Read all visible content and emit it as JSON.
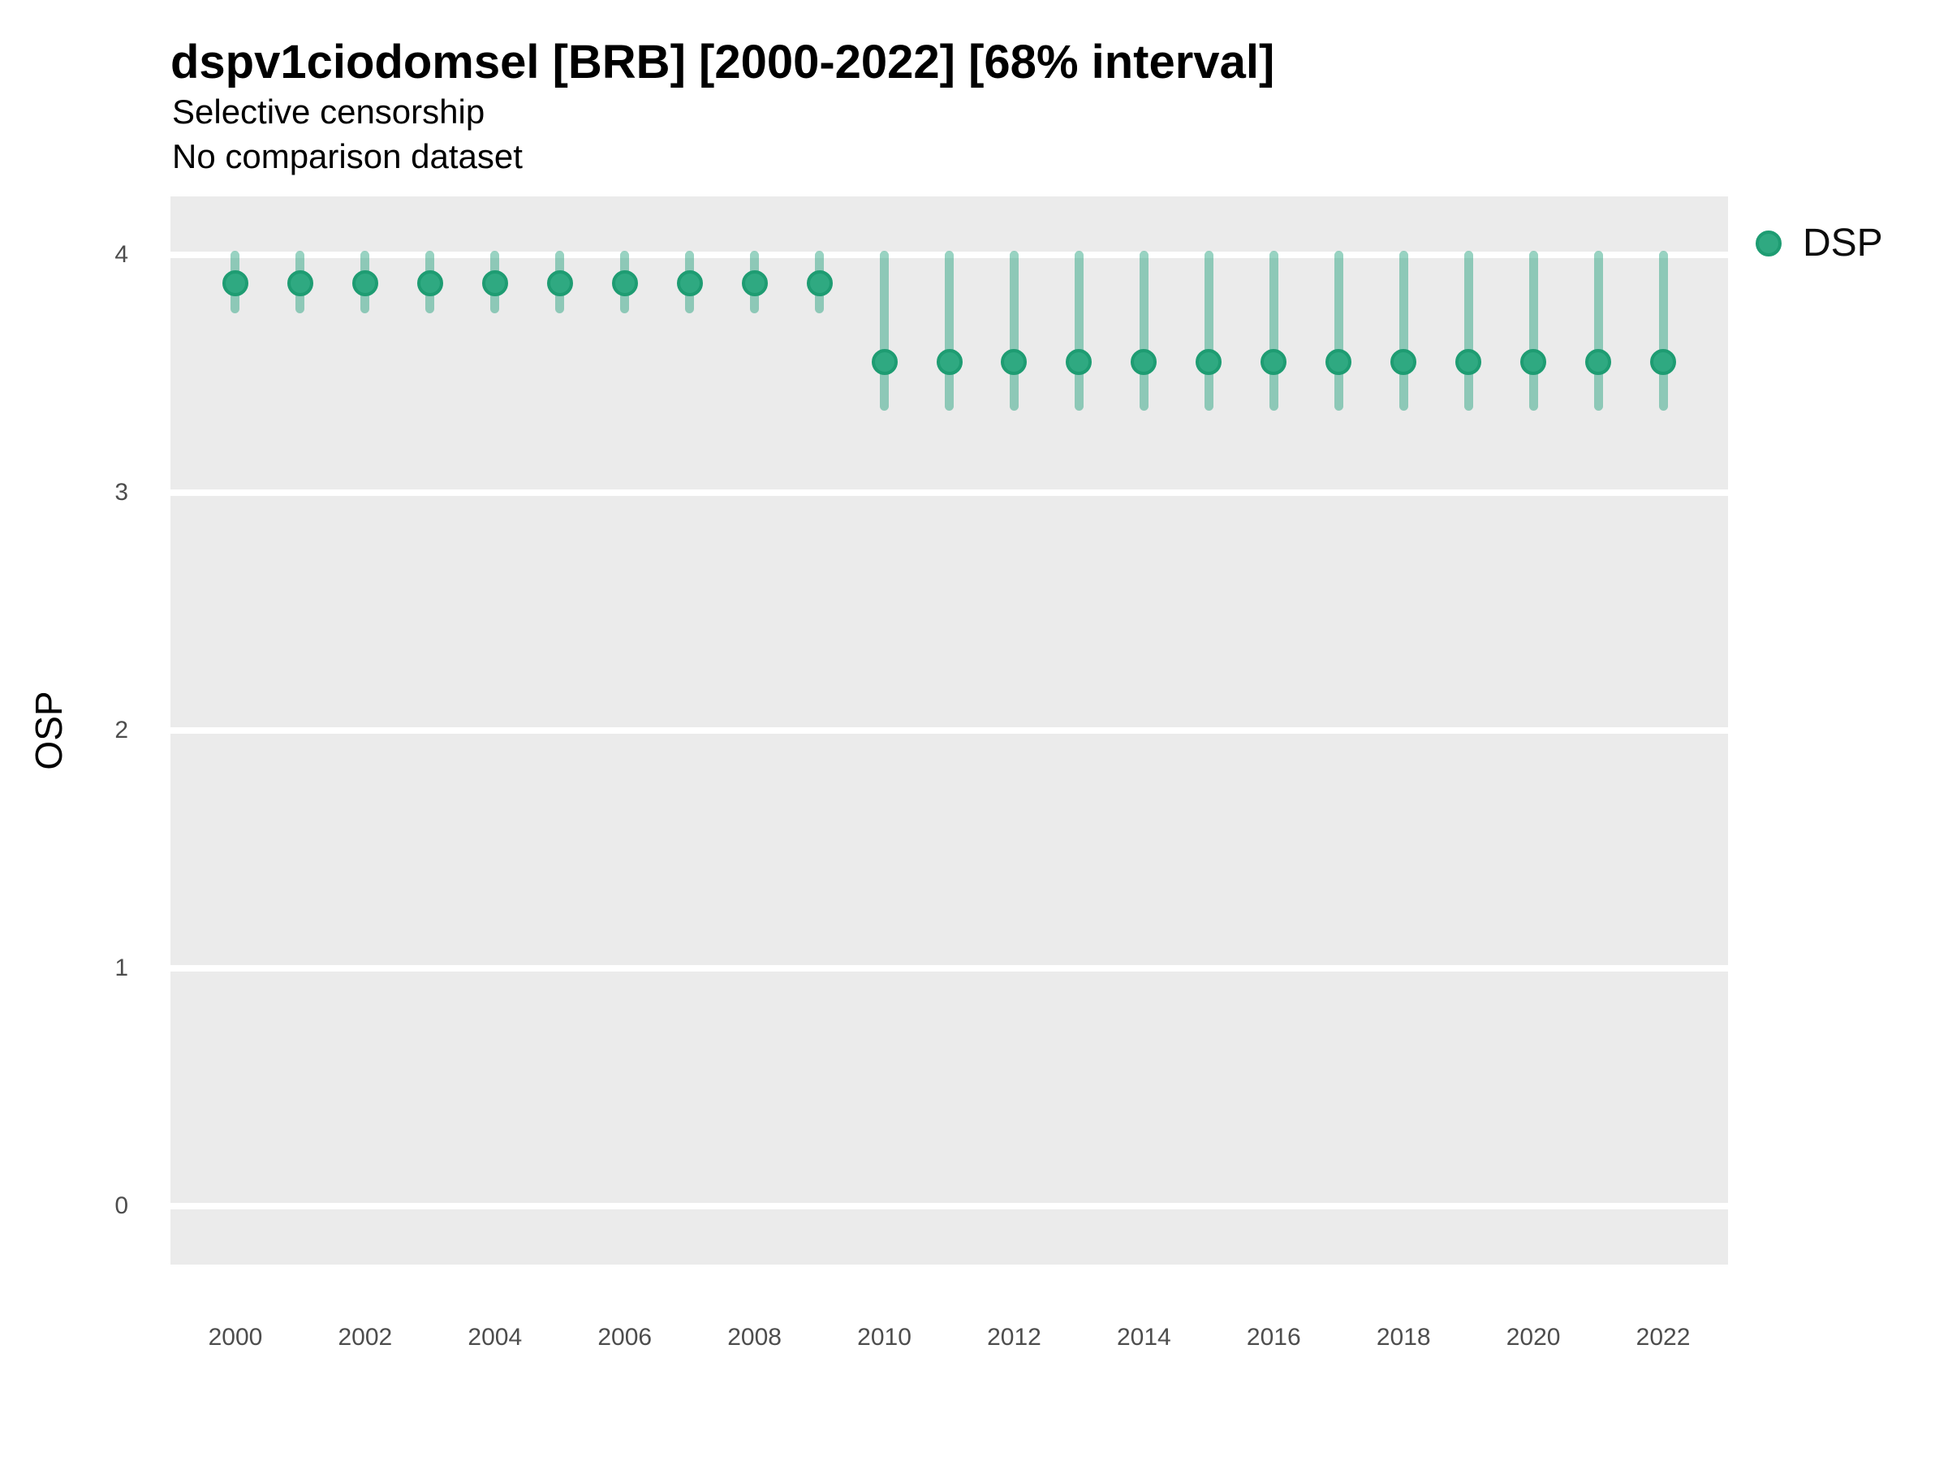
{
  "header": {
    "title": "dspv1ciodomsel [BRB] [2000-2022] [68% interval]",
    "subtitle_line1": "Selective censorship",
    "subtitle_line2": "No comparison dataset"
  },
  "axes": {
    "y_title": "OSP",
    "y_tick_labels": [
      "0",
      "1",
      "2",
      "3",
      "4"
    ],
    "x_tick_labels": [
      "2000",
      "2002",
      "2004",
      "2006",
      "2008",
      "2010",
      "2012",
      "2014",
      "2016",
      "2018",
      "2020",
      "2022"
    ]
  },
  "legend": {
    "position": "right-top",
    "items": [
      {
        "label": "DSP",
        "marker": "circle",
        "marker_color": "#2FA981"
      }
    ]
  },
  "colors": {
    "panel_background": "#EBEBEB",
    "gridline": "#FFFFFF",
    "point_fill": "#2FA981",
    "point_stroke": "#1E9C72",
    "interval_color": "#1B9E77",
    "interval_alpha": 0.45,
    "axis_text": "#4D4D4D",
    "title_text": "#000000"
  },
  "chart_data": {
    "type": "scatter",
    "subtype": "pointrange",
    "title": "dspv1ciodomsel [BRB] [2000-2022] [68% interval]",
    "subtitle": "Selective censorship / No comparison dataset",
    "xlabel": "",
    "ylabel": "OSP",
    "grid": "horizontal-major-only",
    "legend_position": "right",
    "xlim": [
      1999,
      2023
    ],
    "ylim": [
      -0.245,
      4.245
    ],
    "x_ticks": [
      2000,
      2002,
      2004,
      2006,
      2008,
      2010,
      2012,
      2014,
      2016,
      2018,
      2020,
      2022
    ],
    "y_ticks": [
      0,
      1,
      2,
      3,
      4
    ],
    "interval_level": "68%",
    "series": [
      {
        "name": "DSP",
        "x": [
          2000,
          2001,
          2002,
          2003,
          2004,
          2005,
          2006,
          2007,
          2008,
          2009,
          2010,
          2011,
          2012,
          2013,
          2014,
          2015,
          2016,
          2017,
          2018,
          2019,
          2020,
          2021,
          2022
        ],
        "estimate": [
          3.88,
          3.88,
          3.88,
          3.88,
          3.88,
          3.88,
          3.88,
          3.88,
          3.88,
          3.88,
          3.55,
          3.55,
          3.55,
          3.55,
          3.55,
          3.55,
          3.55,
          3.55,
          3.55,
          3.55,
          3.55,
          3.55,
          3.55
        ],
        "lower": [
          3.77,
          3.77,
          3.77,
          3.77,
          3.77,
          3.77,
          3.77,
          3.77,
          3.77,
          3.77,
          3.36,
          3.36,
          3.36,
          3.36,
          3.36,
          3.36,
          3.36,
          3.36,
          3.36,
          3.36,
          3.36,
          3.36,
          3.36
        ],
        "upper": [
          4.0,
          4.0,
          4.0,
          4.0,
          4.0,
          4.0,
          4.0,
          4.0,
          4.0,
          4.0,
          4.0,
          4.0,
          4.0,
          4.0,
          4.0,
          4.0,
          4.0,
          4.0,
          4.0,
          4.0,
          4.0,
          4.0,
          4.0
        ]
      }
    ]
  }
}
